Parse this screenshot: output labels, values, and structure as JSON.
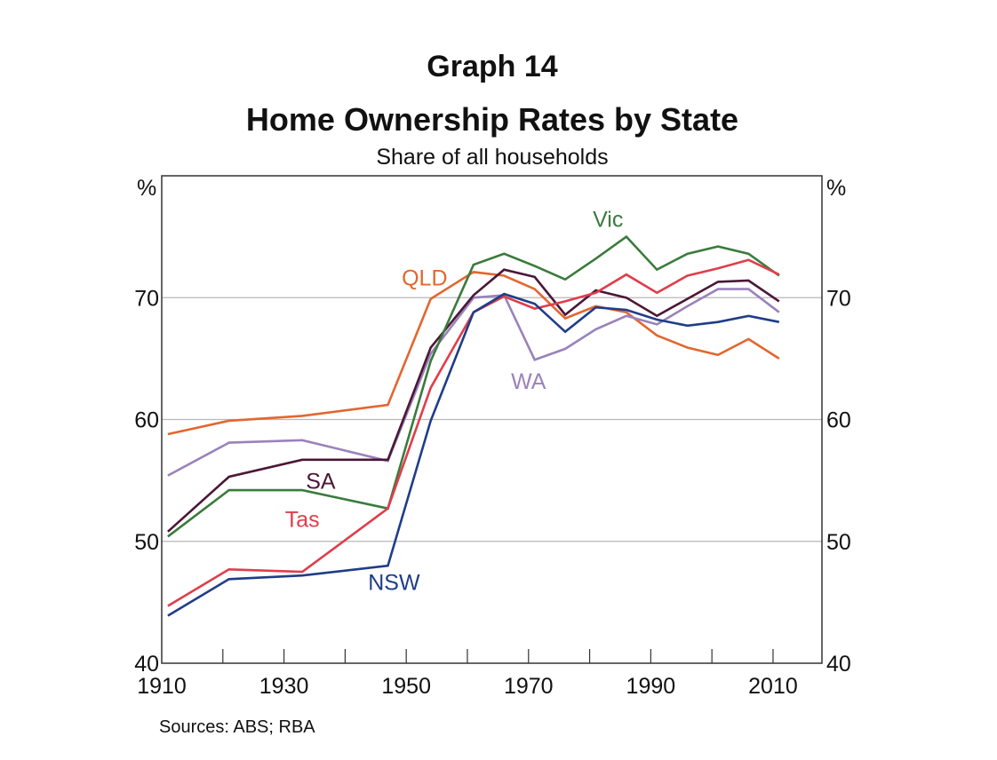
{
  "header": {
    "graph_number": "Graph 14",
    "title": "Home Ownership Rates by State",
    "subtitle": "Share of all households"
  },
  "source": "Sources:  ABS; RBA",
  "chart_data": {
    "type": "line",
    "title": "Home Ownership Rates by State",
    "subtitle": "Share of all households",
    "xlabel": "",
    "ylabel": "%",
    "ylabel_right": "%",
    "xlim": [
      1910,
      2018
    ],
    "ylim": [
      40,
      80
    ],
    "x_ticks": [
      1910,
      1920,
      1930,
      1940,
      1950,
      1960,
      1970,
      1980,
      1990,
      2000,
      2010
    ],
    "x_tick_labels": [
      "1910",
      "1930",
      "1950",
      "1970",
      "1990",
      "2010"
    ],
    "x_tick_label_values": [
      1910,
      1930,
      1950,
      1970,
      1990,
      2010
    ],
    "y_ticks": [
      40,
      50,
      60,
      70
    ],
    "y_tick_labels": [
      "40",
      "50",
      "60",
      "70"
    ],
    "grid": "horizontal",
    "legend": "inline-labels",
    "x": [
      1911,
      1921,
      1933,
      1947,
      1954,
      1961,
      1966,
      1971,
      1976,
      1981,
      1986,
      1991,
      1996,
      2001,
      2006,
      2011
    ],
    "series": [
      {
        "name": "QLD",
        "color": "#e2672f",
        "values": [
          58.8,
          59.9,
          60.3,
          61.2,
          69.9,
          72.1,
          71.8,
          70.7,
          68.3,
          69.3,
          68.8,
          66.9,
          65.9,
          65.3,
          66.6,
          65.0
        ],
        "label_pos": [
          1953,
          71
        ]
      },
      {
        "name": "WA",
        "color": "#9a82bb",
        "values": [
          55.4,
          58.1,
          58.3,
          56.6,
          65.4,
          70.0,
          70.2,
          64.9,
          65.8,
          67.4,
          68.5,
          67.8,
          69.3,
          70.7,
          70.7,
          68.8
        ],
        "label_pos": [
          1970,
          62.5
        ]
      },
      {
        "name": "SA",
        "color": "#4b1736",
        "values": [
          50.8,
          55.3,
          56.7,
          56.7,
          65.9,
          70.2,
          72.3,
          71.7,
          68.6,
          70.6,
          70.0,
          68.5,
          69.9,
          71.3,
          71.4,
          69.7
        ],
        "label_pos": [
          1936,
          54.3
        ]
      },
      {
        "name": "Vic",
        "color": "#3b7b3c",
        "values": [
          50.4,
          54.2,
          54.2,
          52.7,
          64.8,
          72.7,
          73.6,
          72.6,
          71.5,
          73.2,
          75.0,
          72.3,
          73.6,
          74.2,
          73.6,
          71.8
        ],
        "label_pos": [
          1983,
          75.8
        ]
      },
      {
        "name": "Tas",
        "color": "#df3e4b",
        "values": [
          44.7,
          47.7,
          47.5,
          52.7,
          62.6,
          68.8,
          70.1,
          69.1,
          69.7,
          70.4,
          71.9,
          70.4,
          71.8,
          72.4,
          73.1,
          71.9
        ],
        "label_pos": [
          1933,
          51.2
        ]
      },
      {
        "name": "NSW",
        "color": "#1f3d88",
        "values": [
          43.9,
          46.9,
          47.2,
          48.0,
          59.9,
          68.8,
          70.3,
          69.5,
          67.2,
          69.2,
          69.0,
          68.2,
          67.7,
          68.0,
          68.5,
          68.0
        ],
        "label_pos": [
          1948,
          46.0
        ]
      }
    ]
  }
}
